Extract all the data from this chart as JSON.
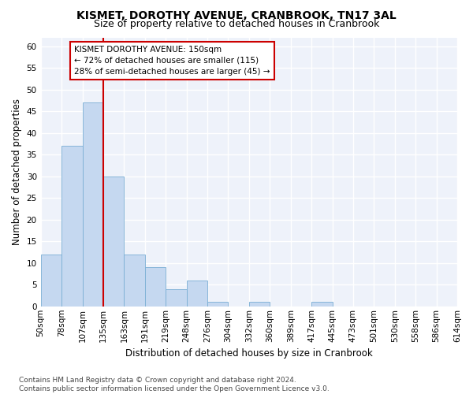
{
  "title": "KISMET, DOROTHY AVENUE, CRANBROOK, TN17 3AL",
  "subtitle": "Size of property relative to detached houses in Cranbrook",
  "xlabel": "Distribution of detached houses by size in Cranbrook",
  "ylabel": "Number of detached properties",
  "bar_values": [
    12,
    37,
    47,
    30,
    12,
    9,
    4,
    6,
    1,
    0,
    1,
    0,
    0,
    1,
    0,
    0,
    0,
    0,
    0,
    0
  ],
  "bar_labels": [
    "50sqm",
    "78sqm",
    "107sqm",
    "135sqm",
    "163sqm",
    "191sqm",
    "219sqm",
    "248sqm",
    "276sqm",
    "304sqm",
    "332sqm",
    "360sqm",
    "389sqm",
    "417sqm",
    "445sqm",
    "473sqm",
    "501sqm",
    "530sqm",
    "558sqm",
    "586sqm",
    "614sqm"
  ],
  "bar_color": "#c5d8f0",
  "bar_edge_color": "#7aaed4",
  "vline_x": 3,
  "vline_color": "#cc0000",
  "annotation_text": "KISMET DOROTHY AVENUE: 150sqm\n← 72% of detached houses are smaller (115)\n28% of semi-detached houses are larger (45) →",
  "annotation_box_color": "#ffffff",
  "annotation_border_color": "#cc0000",
  "ylim": [
    0,
    62
  ],
  "yticks": [
    0,
    5,
    10,
    15,
    20,
    25,
    30,
    35,
    40,
    45,
    50,
    55,
    60
  ],
  "footnote": "Contains HM Land Registry data © Crown copyright and database right 2024.\nContains public sector information licensed under the Open Government Licence v3.0.",
  "background_color": "#eef2fa",
  "grid_color": "#ffffff",
  "title_fontsize": 10,
  "subtitle_fontsize": 9,
  "axis_label_fontsize": 8.5,
  "tick_fontsize": 7.5,
  "annotation_fontsize": 7.5,
  "footnote_fontsize": 6.5
}
